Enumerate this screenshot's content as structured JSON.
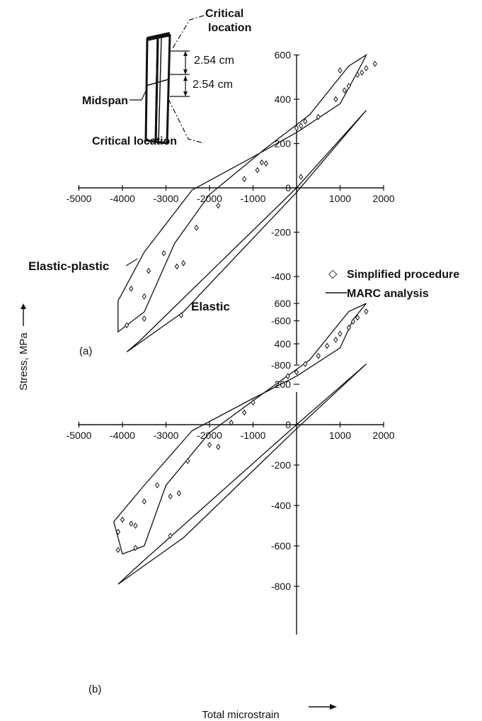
{
  "figure": {
    "y_axis_title": "Stress, MPa",
    "x_axis_title": "Total microstrain",
    "inset": {
      "critical_top": [
        "Critical",
        "location"
      ],
      "dim_upper": "2.54 cm",
      "dim_lower": "2.54 cm",
      "midspan": "Midspan",
      "critical_bottom": "Critical location"
    },
    "legend": {
      "simplified_symbol": "◇",
      "simplified_label": "Simplified procedure",
      "marc_label": "MARC analysis"
    },
    "annotations": {
      "elastic_plastic": "Elastic-plastic",
      "elastic": "Elastic"
    }
  },
  "chart_data": [
    {
      "panel_label": "(a)",
      "type": "line",
      "xlim": [
        -5000,
        2000
      ],
      "ylim": [
        -800,
        600
      ],
      "x_ticks": [
        -5000,
        -4000,
        -3000,
        -2000,
        -1000,
        0,
        1000,
        2000
      ],
      "y_ticks": [
        -800,
        -600,
        -400,
        -200,
        0,
        200,
        400,
        600
      ],
      "x_tick_labels": [
        "-5000",
        "-4000",
        "-3000",
        "-2000",
        "-1000",
        "0",
        "1000",
        "2000"
      ],
      "y_tick_labels": [
        "-800",
        "-600",
        "-400",
        "-200",
        "0",
        "200",
        "400",
        "600"
      ],
      "series": [
        {
          "name": "MARC analysis",
          "kind": "line",
          "points": [
            [
              -4100,
              -510
            ],
            [
              -3500,
              -290
            ],
            [
              -2400,
              -10
            ],
            [
              -1000,
              140
            ],
            [
              0,
              250
            ],
            [
              1000,
              380
            ],
            [
              1500,
              560
            ],
            [
              1600,
              600
            ],
            [
              1200,
              550
            ],
            [
              300,
              330
            ],
            [
              -700,
              180
            ],
            [
              -2000,
              -30
            ],
            [
              -2800,
              -250
            ],
            [
              -3500,
              -560
            ],
            [
              -4100,
              -650
            ],
            [
              -4100,
              -510
            ]
          ]
        },
        {
          "name": "MARC analysis",
          "kind": "line",
          "points": [
            [
              -3900,
              -740
            ],
            [
              -2600,
              -560
            ],
            [
              0,
              -20
            ],
            [
              1600,
              350
            ],
            [
              0,
              0
            ],
            [
              -3600,
              -690
            ],
            [
              -3900,
              -740
            ]
          ]
        },
        {
          "name": "Simplified procedure",
          "kind": "scatter",
          "points": [
            [
              -3900,
              -620
            ],
            [
              -3800,
              -455
            ],
            [
              -3500,
              -490
            ],
            [
              -3500,
              -590
            ],
            [
              -3400,
              -375
            ],
            [
              -3050,
              -295
            ],
            [
              -2750,
              -355
            ],
            [
              -2650,
              -575
            ],
            [
              -2600,
              -340
            ],
            [
              -2300,
              -180
            ],
            [
              -1800,
              -80
            ],
            [
              -1200,
              40
            ],
            [
              -900,
              80
            ],
            [
              -800,
              115
            ],
            [
              0,
              270
            ],
            [
              100,
              280
            ],
            [
              200,
              300
            ],
            [
              500,
              320
            ],
            [
              900,
              400
            ],
            [
              1100,
              440
            ],
            [
              1200,
              460
            ],
            [
              1400,
              510
            ],
            [
              1500,
              520
            ],
            [
              1600,
              540
            ],
            [
              1800,
              560
            ],
            [
              1000,
              530
            ],
            [
              100,
              50
            ],
            [
              -700,
              110
            ]
          ]
        }
      ]
    },
    {
      "panel_label": "(b)",
      "type": "line",
      "xlim": [
        -5000,
        2000
      ],
      "ylim": [
        -800,
        600
      ],
      "x_ticks": [
        -5000,
        -4000,
        -3000,
        -2000,
        -1000,
        0,
        1000,
        2000
      ],
      "y_ticks": [
        -800,
        -600,
        -400,
        -200,
        0,
        200,
        400,
        600
      ],
      "x_tick_labels": [
        "-5000",
        "-4000",
        "-3000",
        "-2000",
        "-1000",
        "0",
        "1000",
        "2000"
      ],
      "y_tick_labels": [
        "-800",
        "-600",
        "-400",
        "-200",
        "0",
        "200",
        "400",
        "600"
      ],
      "series": [
        {
          "name": "MARC analysis",
          "kind": "line",
          "points": [
            [
              -4200,
              -480
            ],
            [
              -3500,
              -300
            ],
            [
              -2400,
              -30
            ],
            [
              -1000,
              130
            ],
            [
              0,
              240
            ],
            [
              1000,
              380
            ],
            [
              1300,
              520
            ],
            [
              1600,
              600
            ],
            [
              1200,
              560
            ],
            [
              300,
              320
            ],
            [
              -800,
              150
            ],
            [
              -2000,
              -40
            ],
            [
              -3000,
              -300
            ],
            [
              -3500,
              -600
            ],
            [
              -4000,
              -640
            ],
            [
              -4200,
              -480
            ]
          ]
        },
        {
          "name": "MARC analysis",
          "kind": "line",
          "points": [
            [
              -4100,
              -790
            ],
            [
              -2600,
              -560
            ],
            [
              0,
              -20
            ],
            [
              1600,
              300
            ],
            [
              0,
              0
            ],
            [
              -3600,
              -690
            ],
            [
              -4100,
              -790
            ]
          ]
        },
        {
          "name": "Simplified procedure",
          "kind": "scatter",
          "points": [
            [
              -4100,
              -530
            ],
            [
              -4000,
              -470
            ],
            [
              -3800,
              -490
            ],
            [
              -3700,
              -610
            ],
            [
              -3500,
              -380
            ],
            [
              -3200,
              -300
            ],
            [
              -2900,
              -355
            ],
            [
              -2700,
              -340
            ],
            [
              -2500,
              -180
            ],
            [
              -2000,
              -100
            ],
            [
              -1800,
              -110
            ],
            [
              -1500,
              10
            ],
            [
              -1200,
              60
            ],
            [
              -1000,
              110
            ],
            [
              -200,
              240
            ],
            [
              0,
              260
            ],
            [
              200,
              300
            ],
            [
              500,
              340
            ],
            [
              700,
              390
            ],
            [
              900,
              420
            ],
            [
              1000,
              450
            ],
            [
              1200,
              480
            ],
            [
              1300,
              510
            ],
            [
              1400,
              530
            ],
            [
              1600,
              560
            ],
            [
              -2900,
              -550
            ],
            [
              -4100,
              -620
            ],
            [
              -3700,
              -500
            ]
          ]
        }
      ]
    }
  ]
}
